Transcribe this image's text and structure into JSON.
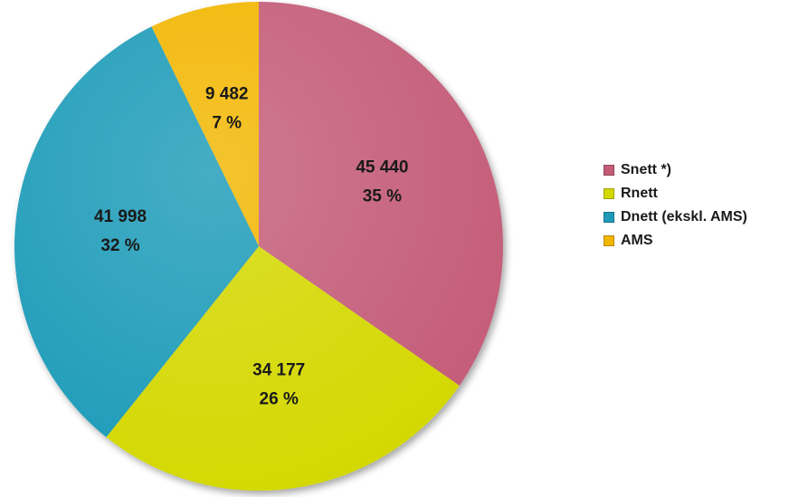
{
  "chart_data": {
    "type": "pie",
    "slices": [
      {
        "name": "Snett *)",
        "value": 45440,
        "value_label": "45 440",
        "percent_label": "35 %",
        "color": "#c45c78"
      },
      {
        "name": "Rnett",
        "value": 34177,
        "value_label": "34 177",
        "percent_label": "26 %",
        "color": "#d4d800"
      },
      {
        "name": "Dnett (ekskl. AMS)",
        "value": 41998,
        "value_label": "41 998",
        "percent_label": "32 %",
        "color": "#1f9bb8"
      },
      {
        "name": "AMS",
        "value": 9482,
        "value_label": "9 482",
        "percent_label": "7 %",
        "color": "#f2b600"
      }
    ],
    "start_angle": "12 o'clock",
    "direction": "clockwise",
    "legend_position": "right"
  }
}
